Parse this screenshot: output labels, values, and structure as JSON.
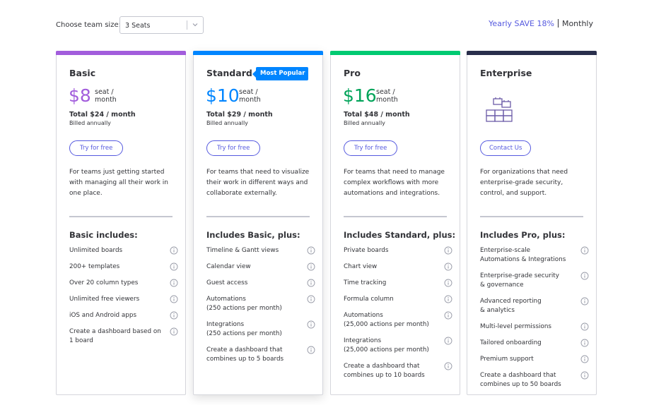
{
  "toolbar": {
    "team_size_label": "Choose team size:",
    "team_size_value": "3 Seats",
    "yearly_label": "Yearly SAVE 18%",
    "monthly_label": "Monthly"
  },
  "colors": {
    "accent": "#5559df",
    "basic": "#a25ddc",
    "standard": "#0085ff",
    "pro": "#00ca72",
    "enterprise": "#292f4c",
    "pro_price": "#00a359"
  },
  "plans": [
    {
      "name": "Basic",
      "price": "$8",
      "unit": "seat / month",
      "total": "Total $24 / month",
      "billed": "Billed annually",
      "cta": "Try for free",
      "description": "For teams just getting started with managing all their work in one place.",
      "includes": "Basic includes:",
      "features": [
        "Unlimited boards",
        "200+ templates",
        "Over 20 column types",
        "Unlimited free viewers",
        "iOS and Android apps",
        "Create a dashboard based on 1 board"
      ]
    },
    {
      "name": "Standard",
      "badge": "Most Popular",
      "price": "$10",
      "unit": "seat / month",
      "total": "Total $29 / month",
      "billed": "Billed annually",
      "cta": "Try for free",
      "description": "For teams that need to visualize their work in different ways and collaborate externally.",
      "includes": "Includes Basic, plus:",
      "features": [
        "Timeline & Gantt views",
        "Calendar view",
        "Guest access",
        "Automations\n(250 actions per month)",
        "Integrations\n(250 actions per month)",
        "Create a dashboard that combines up to 5 boards"
      ]
    },
    {
      "name": "Pro",
      "price": "$16",
      "unit": "seat / month",
      "total": "Total $48 / month",
      "billed": "Billed annually",
      "cta": "Try for free",
      "description": "For teams that need to manage complex workflows with more automations and integrations.",
      "includes": "Includes Standard, plus:",
      "features": [
        "Private boards",
        "Chart view",
        "Time tracking",
        "Formula column",
        "Automations\n(25,000 actions per month)",
        "Integrations\n(25,000 actions per month)",
        "Create a dashboard that combines up to 10 boards"
      ]
    },
    {
      "name": "Enterprise",
      "cta": "Contact Us",
      "description": "For organizations that need enterprise-grade security, control, and support.",
      "includes": "Includes Pro, plus:",
      "features": [
        "Enterprise-scale\nAutomations & Integrations",
        "Enterprise-grade security\n& governance",
        "Advanced reporting\n& analytics",
        "Multi-level permissions",
        "Tailored onboarding",
        "Premium support",
        "Create a dashboard that combines up to 50 boards"
      ]
    }
  ]
}
